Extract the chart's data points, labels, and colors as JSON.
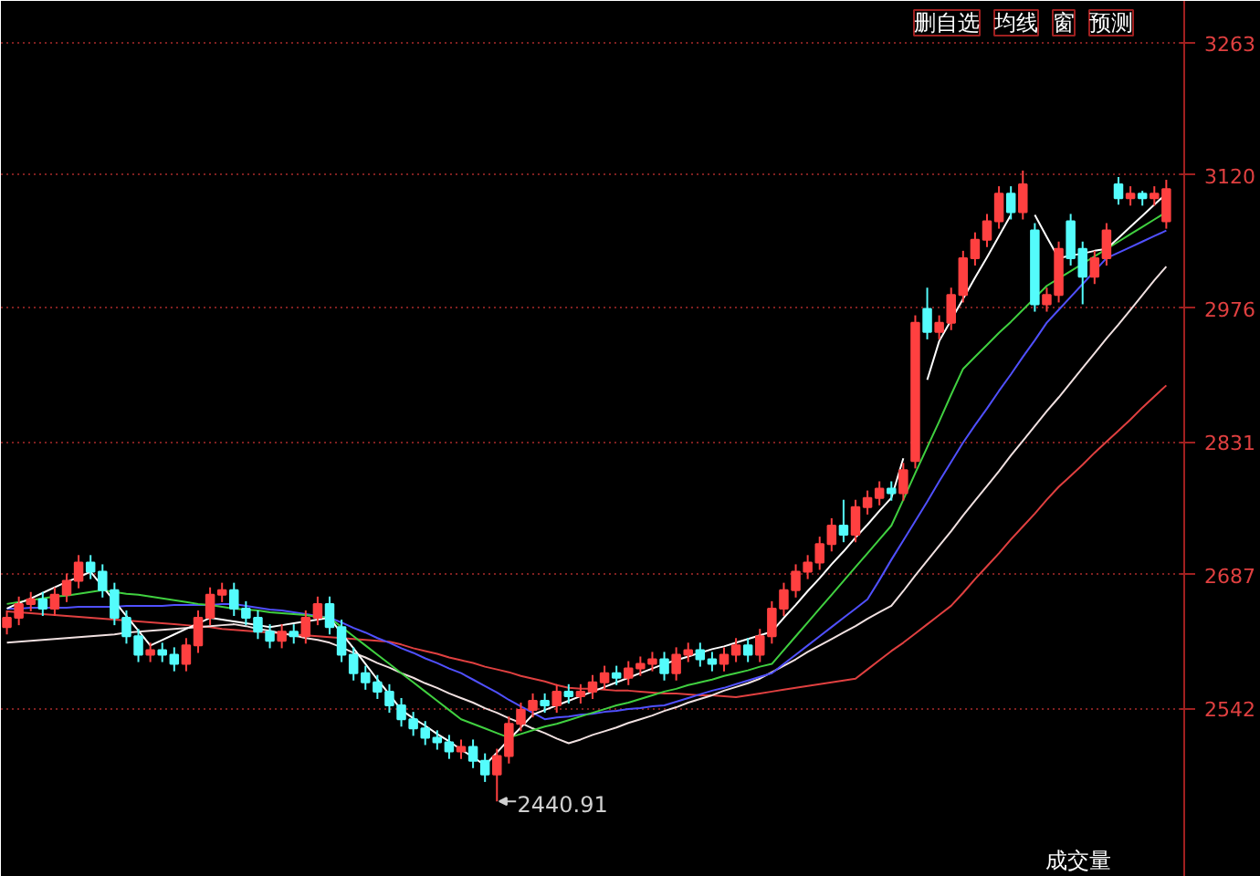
{
  "chart_data": {
    "type": "candlestick",
    "categories": [
      null,
      null,
      null,
      null,
      null,
      null,
      null,
      null,
      null,
      null,
      null,
      null,
      null,
      null,
      null,
      null,
      null,
      null,
      null,
      null,
      null,
      null,
      null,
      null,
      null,
      null,
      null,
      null,
      null,
      null,
      null,
      null,
      null,
      null,
      null,
      null,
      null,
      null,
      null,
      null,
      null,
      null,
      null,
      null,
      null,
      null,
      null,
      null,
      null,
      null,
      null,
      null,
      null,
      null,
      null,
      null,
      null,
      null,
      null,
      null,
      null,
      null,
      null,
      null,
      null,
      null,
      null,
      null,
      null,
      null,
      null,
      null,
      null,
      null,
      null,
      null,
      null,
      null,
      null,
      null,
      null,
      null,
      null,
      null,
      null,
      null,
      null,
      null,
      null,
      null,
      null,
      null,
      null,
      null,
      null,
      null,
      null,
      null
    ],
    "ohlc": [
      [
        2630,
        2648,
        2622,
        2640
      ],
      [
        2640,
        2663,
        2632,
        2655
      ],
      [
        2655,
        2668,
        2647,
        2660
      ],
      [
        2660,
        2668,
        2642,
        2650
      ],
      [
        2650,
        2673,
        2642,
        2665
      ],
      [
        2665,
        2688,
        2657,
        2680
      ],
      [
        2680,
        2708,
        2672,
        2700
      ],
      [
        2700,
        2708,
        2682,
        2690
      ],
      [
        2690,
        2698,
        2662,
        2670
      ],
      [
        2670,
        2678,
        2632,
        2640
      ],
      [
        2640,
        2648,
        2612,
        2620
      ],
      [
        2620,
        2628,
        2592,
        2600
      ],
      [
        2600,
        2613,
        2592,
        2605
      ],
      [
        2605,
        2613,
        2592,
        2600
      ],
      [
        2600,
        2608,
        2582,
        2590
      ],
      [
        2590,
        2618,
        2582,
        2610
      ],
      [
        2610,
        2648,
        2602,
        2640
      ],
      [
        2640,
        2673,
        2632,
        2665
      ],
      [
        2665,
        2678,
        2657,
        2670
      ],
      [
        2670,
        2678,
        2642,
        2650
      ],
      [
        2650,
        2658,
        2632,
        2640
      ],
      [
        2640,
        2648,
        2617,
        2625
      ],
      [
        2625,
        2633,
        2607,
        2615
      ],
      [
        2615,
        2633,
        2607,
        2625
      ],
      [
        2625,
        2633,
        2612,
        2620
      ],
      [
        2620,
        2648,
        2612,
        2640
      ],
      [
        2640,
        2663,
        2632,
        2655
      ],
      [
        2655,
        2663,
        2622,
        2630
      ],
      [
        2630,
        2638,
        2592,
        2600
      ],
      [
        2600,
        2608,
        2572,
        2580
      ],
      [
        2580,
        2588,
        2562,
        2570
      ],
      [
        2570,
        2578,
        2552,
        2560
      ],
      [
        2560,
        2568,
        2537,
        2545
      ],
      [
        2545,
        2553,
        2522,
        2530
      ],
      [
        2530,
        2538,
        2512,
        2520
      ],
      [
        2520,
        2528,
        2502,
        2510
      ],
      [
        2510,
        2518,
        2497,
        2505
      ],
      [
        2505,
        2513,
        2487,
        2495
      ],
      [
        2495,
        2508,
        2487,
        2500
      ],
      [
        2500,
        2508,
        2477,
        2485
      ],
      [
        2485,
        2493,
        2462,
        2470
      ],
      [
        2470,
        2498,
        2440.91,
        2490
      ],
      [
        2490,
        2533,
        2482,
        2525
      ],
      [
        2525,
        2548,
        2517,
        2540
      ],
      [
        2540,
        2558,
        2532,
        2550
      ],
      [
        2550,
        2558,
        2537,
        2545
      ],
      [
        2545,
        2568,
        2537,
        2560
      ],
      [
        2560,
        2568,
        2547,
        2555
      ],
      [
        2555,
        2568,
        2547,
        2560
      ],
      [
        2560,
        2578,
        2552,
        2570
      ],
      [
        2570,
        2588,
        2562,
        2580
      ],
      [
        2580,
        2588,
        2567,
        2575
      ],
      [
        2575,
        2593,
        2567,
        2585
      ],
      [
        2585,
        2598,
        2577,
        2590
      ],
      [
        2590,
        2603,
        2582,
        2595
      ],
      [
        2595,
        2603,
        2572,
        2580
      ],
      [
        2580,
        2608,
        2572,
        2600
      ],
      [
        2600,
        2613,
        2592,
        2605
      ],
      [
        2605,
        2613,
        2587,
        2595
      ],
      [
        2595,
        2603,
        2582,
        2590
      ],
      [
        2590,
        2608,
        2582,
        2600
      ],
      [
        2600,
        2618,
        2592,
        2610
      ],
      [
        2610,
        2618,
        2592,
        2600
      ],
      [
        2600,
        2628,
        2592,
        2620
      ],
      [
        2620,
        2658,
        2612,
        2650
      ],
      [
        2650,
        2678,
        2642,
        2670
      ],
      [
        2670,
        2698,
        2662,
        2690
      ],
      [
        2690,
        2708,
        2682,
        2700
      ],
      [
        2700,
        2728,
        2692,
        2720
      ],
      [
        2720,
        2748,
        2712,
        2740
      ],
      [
        2740,
        2768,
        2722,
        2730
      ],
      [
        2730,
        2768,
        2722,
        2760
      ],
      [
        2760,
        2778,
        2752,
        2770
      ],
      [
        2770,
        2788,
        2762,
        2780
      ],
      [
        2780,
        2788,
        2767,
        2775
      ],
      [
        2775,
        2808,
        2767,
        2800
      ],
      [
        2810,
        2968,
        2802,
        2960
      ],
      [
        2975,
        2998,
        2942,
        2950
      ],
      [
        2950,
        2968,
        2942,
        2960
      ],
      [
        2960,
        2998,
        2952,
        2990
      ],
      [
        2990,
        3038,
        2982,
        3030
      ],
      [
        3030,
        3058,
        3022,
        3050
      ],
      [
        3050,
        3078,
        3042,
        3070
      ],
      [
        3070,
        3108,
        3062,
        3100
      ],
      [
        3100,
        3108,
        3072,
        3080
      ],
      [
        3080,
        3125,
        3072,
        3110
      ],
      [
        3060,
        3068,
        2972,
        2980
      ],
      [
        2980,
        2998,
        2972,
        2990
      ],
      [
        2990,
        3048,
        2982,
        3040
      ],
      [
        3070,
        3078,
        3022,
        3030
      ],
      [
        3040,
        3048,
        2980,
        3010
      ],
      [
        3010,
        3038,
        3002,
        3030
      ],
      [
        3030,
        3068,
        3022,
        3060
      ],
      [
        3110,
        3118,
        3088,
        3095
      ],
      [
        3095,
        3108,
        3087,
        3100
      ],
      [
        3100,
        3103,
        3087,
        3095
      ],
      [
        3095,
        3108,
        3087,
        3100
      ],
      [
        3070,
        3115,
        3062,
        3105
      ]
    ],
    "series": [
      {
        "type": "line",
        "color": "#e04040",
        "values": [
          2647,
          2646,
          2645,
          2644,
          2643,
          2642,
          2641,
          2640,
          2639,
          2638,
          2637,
          2636,
          2635,
          2634,
          2633,
          2632,
          2631,
          2630,
          2628,
          2627,
          2626,
          2625,
          2624,
          2623,
          2622,
          2621,
          2620,
          2619,
          2618,
          2617,
          2616,
          2615,
          2614,
          2611,
          2607,
          2604,
          2601,
          2597,
          2594,
          2591,
          2587,
          2584,
          2581,
          2577,
          2574,
          2571,
          2567,
          2564,
          2563,
          2563,
          2562,
          2561,
          2561,
          2560,
          2559,
          2558,
          2558,
          2557,
          2556,
          2556,
          2555,
          2554,
          2556,
          2558,
          2560,
          2562,
          2564,
          2566,
          2568,
          2570,
          2572,
          2574,
          2584,
          2594,
          2604,
          2613,
          2623,
          2633,
          2643,
          2653,
          2667,
          2682,
          2696,
          2710,
          2725,
          2739,
          2753,
          2768,
          2782,
          2794,
          2806,
          2819,
          2831,
          2843,
          2855,
          2868,
          2880,
          2892
        ]
      },
      {
        "type": "line",
        "color": "#f0e0e0",
        "values": [
          2613,
          2614,
          2615,
          2616,
          2617,
          2618,
          2619,
          2620,
          2621,
          2622,
          2624,
          2625,
          2626,
          2627,
          2628,
          2629,
          2630,
          2631,
          2632,
          2633,
          2631,
          2628,
          2626,
          2623,
          2621,
          2618,
          2616,
          2613,
          2608,
          2602,
          2597,
          2591,
          2586,
          2580,
          2575,
          2569,
          2564,
          2558,
          2553,
          2548,
          2542,
          2537,
          2531,
          2526,
          2520,
          2515,
          2509,
          2504,
          2508,
          2513,
          2517,
          2521,
          2526,
          2530,
          2534,
          2539,
          2543,
          2548,
          2552,
          2556,
          2561,
          2565,
          2569,
          2574,
          2581,
          2588,
          2595,
          2603,
          2610,
          2617,
          2624,
          2631,
          2639,
          2646,
          2653,
          2669,
          2686,
          2702,
          2718,
          2734,
          2751,
          2767,
          2783,
          2799,
          2816,
          2832,
          2848,
          2864,
          2879,
          2895,
          2911,
          2927,
          2943,
          2958,
          2974,
          2990,
          3006,
          3021
        ]
      },
      {
        "type": "line",
        "color": "#5050ff",
        "values": [
          2650,
          2650,
          2651,
          2651,
          2651,
          2651,
          2652,
          2652,
          2652,
          2652,
          2653,
          2653,
          2653,
          2653,
          2654,
          2654,
          2654,
          2654,
          2655,
          2655,
          2653,
          2651,
          2649,
          2648,
          2646,
          2644,
          2642,
          2640,
          2635,
          2629,
          2624,
          2618,
          2613,
          2607,
          2602,
          2596,
          2591,
          2585,
          2580,
          2573,
          2566,
          2559,
          2551,
          2544,
          2537,
          2530,
          2532,
          2533,
          2535,
          2536,
          2538,
          2539,
          2541,
          2542,
          2544,
          2545,
          2549,
          2553,
          2557,
          2561,
          2564,
          2568,
          2572,
          2576,
          2580,
          2590,
          2600,
          2610,
          2620,
          2630,
          2640,
          2650,
          2660,
          2681,
          2703,
          2724,
          2745,
          2766,
          2788,
          2809,
          2830,
          2849,
          2867,
          2886,
          2904,
          2923,
          2941,
          2960,
          2974,
          2988,
          3002,
          3016,
          3030,
          3036,
          3042,
          3048,
          3054,
          3060
        ]
      },
      {
        "type": "line",
        "color": "#40d040",
        "values": [
          2655,
          2657,
          2659,
          2661,
          2663,
          2664,
          2666,
          2668,
          2670,
          2668,
          2666,
          2665,
          2663,
          2661,
          2659,
          2657,
          2655,
          2654,
          2652,
          2650,
          2649,
          2648,
          2646,
          2645,
          2644,
          2643,
          2641,
          2640,
          2630,
          2620,
          2610,
          2600,
          2590,
          2580,
          2570,
          2560,
          2550,
          2540,
          2530,
          2525,
          2520,
          2515,
          2510,
          2514,
          2518,
          2522,
          2525,
          2529,
          2533,
          2537,
          2541,
          2545,
          2548,
          2552,
          2556,
          2560,
          2563,
          2567,
          2570,
          2573,
          2577,
          2580,
          2583,
          2587,
          2590,
          2605,
          2620,
          2635,
          2650,
          2665,
          2680,
          2695,
          2710,
          2725,
          2740,
          2768,
          2797,
          2825,
          2853,
          2882,
          2910,
          2923,
          2936,
          2949,
          2961,
          2974,
          2987,
          3000,
          3008,
          3016,
          3024,
          3032,
          3040,
          3048,
          3056,
          3064,
          3072,
          3080
        ]
      },
      {
        "type": "line",
        "color": "#ffffff",
        "values": [
          2650,
          2656,
          2661,
          2667,
          2673,
          2679,
          2684,
          2690,
          2674,
          2658,
          2642,
          2626,
          2610,
          2616,
          2622,
          2628,
          2634,
          2640,
          2638,
          2636,
          2634,
          2632,
          2630,
          2632,
          2634,
          2636,
          2638,
          2640,
          2623,
          2607,
          2590,
          2573,
          2557,
          2540,
          2531,
          2523,
          2514,
          2506,
          2497,
          2489,
          2480,
          2494,
          2508,
          2521,
          2535,
          2540,
          2545,
          2550,
          2555,
          2560,
          2565,
          2570,
          2575,
          2580,
          2585,
          2590,
          2594,
          2598,
          2602,
          2606,
          2609,
          2613,
          2617,
          2621,
          2625,
          2640,
          2654,
          2669,
          2683,
          2698,
          2712,
          2727,
          2741,
          2756,
          2770,
          2813,
          null,
          2898,
          2940,
          2963,
          2986,
          3009,
          3031,
          3054,
          3077,
          null,
          3077,
          3053,
          3030,
          3033,
          3035,
          3038,
          3040,
          3052,
          3064,
          3076,
          3088,
          3100
        ]
      }
    ],
    "ylim": [
      2359,
      3309
    ],
    "yticks": [
      2542,
      2687,
      2831,
      2976,
      3120,
      3263
    ],
    "grid": "y",
    "tick_labels": "y",
    "annotations": [
      "删自选",
      "均线",
      "窗",
      "预测",
      "成交量",
      "2440.91"
    ]
  }
}
